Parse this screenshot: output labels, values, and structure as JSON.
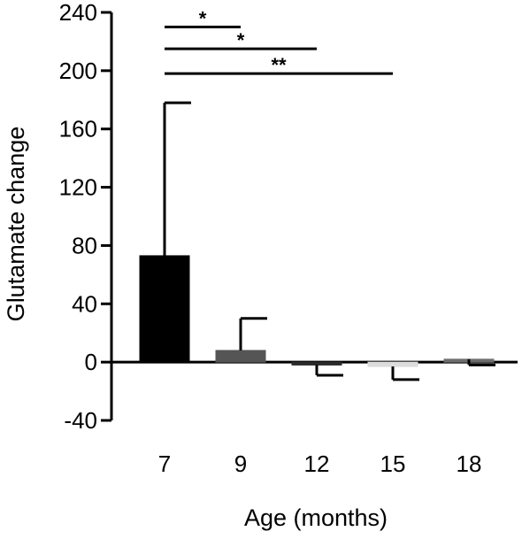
{
  "chart_data": {
    "type": "bar",
    "title": "",
    "xlabel": "Age (months)",
    "ylabel": "Glutamate change",
    "ylim": [
      -40,
      240
    ],
    "yticks": [
      "-40",
      "0",
      "40",
      "80",
      "120",
      "160",
      "200",
      "240"
    ],
    "categories": [
      "7",
      "9",
      "12",
      "15",
      "18"
    ],
    "values": [
      73,
      8,
      -2,
      -3,
      2
    ],
    "error_bars": [
      {
        "category": "7",
        "direction": "up",
        "value": 178
      },
      {
        "category": "9",
        "direction": "up",
        "value": 30
      },
      {
        "category": "12",
        "direction": "down",
        "value": -9
      },
      {
        "category": "15",
        "direction": "down",
        "value": -12
      },
      {
        "category": "18",
        "direction": "down",
        "value": -2
      }
    ],
    "bar_colors": [
      "#000000",
      "#555555",
      "#2a2a2a",
      "#dcdcdc",
      "#6e6e6e"
    ],
    "significance": [
      {
        "from": "7",
        "to": "9",
        "label": "*",
        "y": 230
      },
      {
        "from": "7",
        "to": "12",
        "label": "*",
        "y": 215
      },
      {
        "from": "7",
        "to": "15",
        "label": "**",
        "y": 198
      }
    ],
    "grid": false,
    "legend": "none"
  }
}
